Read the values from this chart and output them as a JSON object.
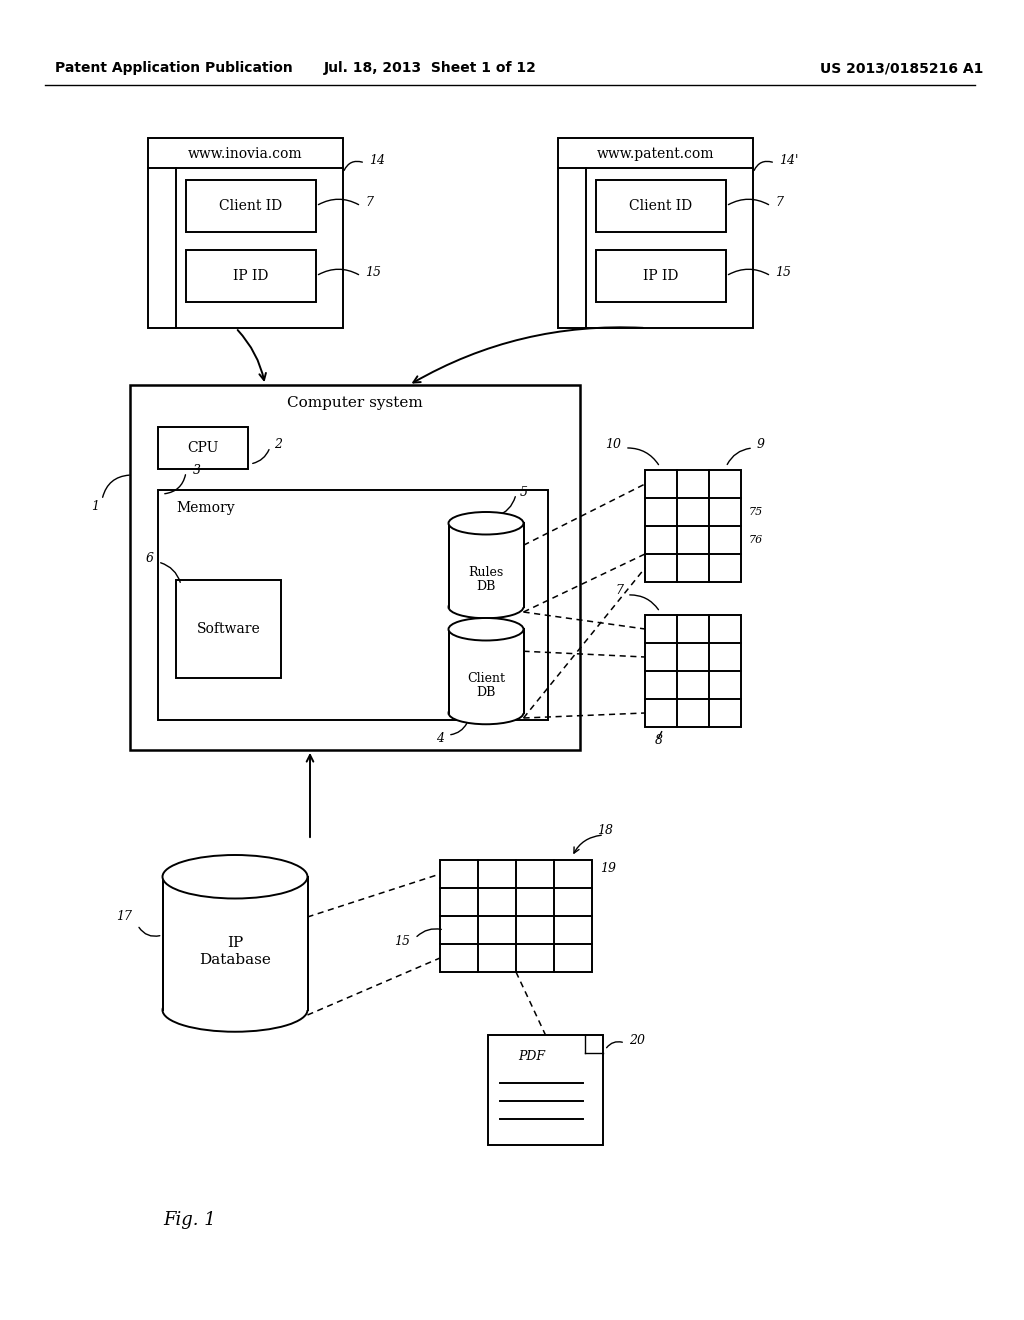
{
  "bg_color": "#ffffff",
  "header_text": "Patent Application Publication",
  "header_date": "Jul. 18, 2013  Sheet 1 of 12",
  "header_patent": "US 2013/0185216 A1",
  "fig_label": "Fig. 1",
  "line_color": "#000000",
  "wb1_url": "www.inovia.com",
  "wb2_url": "www.patent.com"
}
